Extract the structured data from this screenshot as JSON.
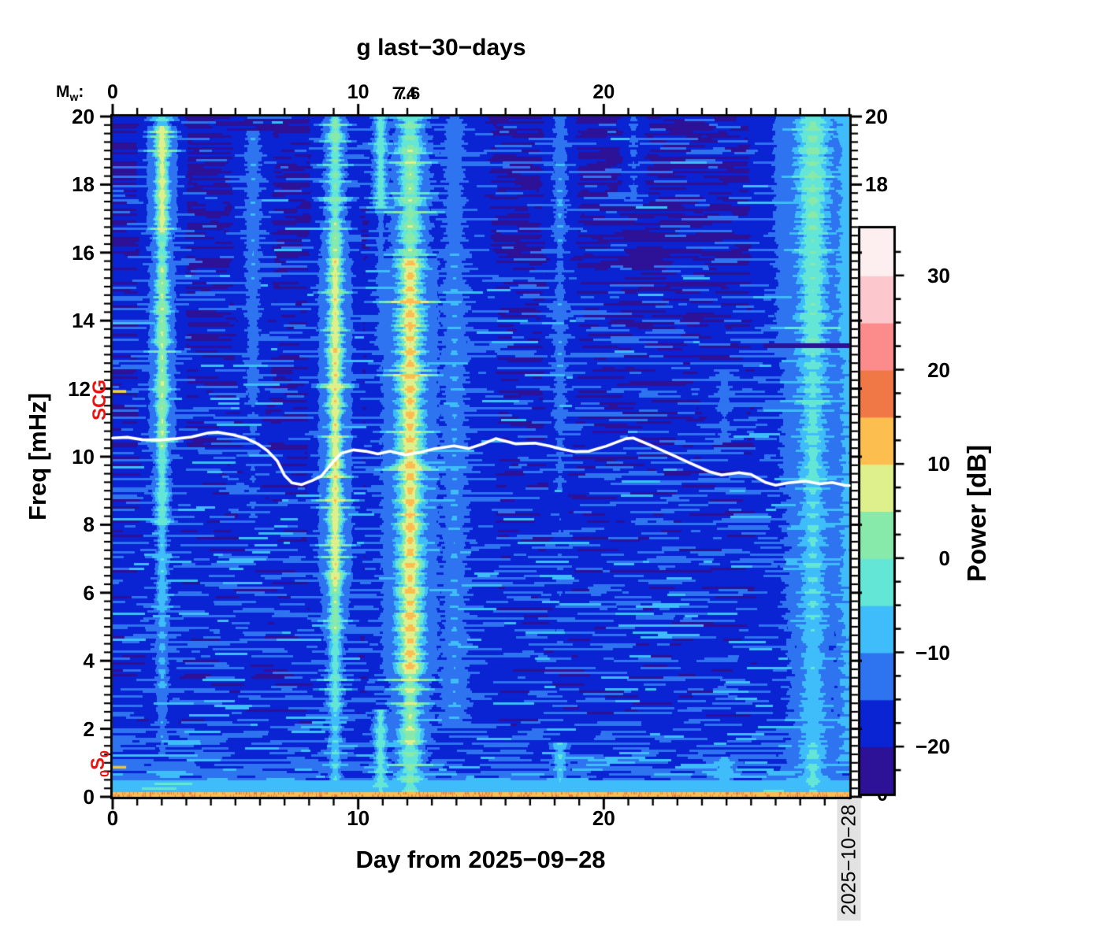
{
  "title": "g last−30−days",
  "side_date": "2025−10−28",
  "top_axis": {
    "mw": {
      "prefix": "M",
      "sub": "w",
      "suffix": ":"
    },
    "tick_values": [
      0,
      10,
      20
    ],
    "magnitude_labels": [
      {
        "text": "7.4",
        "day": 11.87
      },
      {
        "text": "7.6",
        "day": 12.03
      }
    ]
  },
  "axes": {
    "x": {
      "label": "Day from 2025−09−28",
      "min": 0,
      "max": 30,
      "major_ticks": [
        0,
        10,
        20
      ],
      "minor_step": 1
    },
    "y": {
      "label": "Freq [mHz]",
      "min": 0,
      "max": 20,
      "major_step": 2,
      "minor_step": 0.25,
      "tick_values": [
        20,
        18,
        16,
        14,
        12,
        10,
        8,
        6,
        4,
        2,
        0
      ]
    },
    "y_right_tick_labels": [
      "20",
      "18"
    ]
  },
  "colorbar": {
    "label": "Power [dB]",
    "min": -25,
    "max": 35,
    "band_step": 5,
    "major_tick_values": [
      30,
      20,
      10,
      0,
      -10,
      -20
    ],
    "major_tick_labels": [
      "30",
      "20",
      "10",
      "0",
      "−10",
      "−20"
    ],
    "minor_step": 2.5,
    "bottom_label": "0",
    "colors_bottom_to_top": [
      "#2d1196",
      "#0a23d3",
      "#2e73f0",
      "#3ebdfa",
      "#64e6d7",
      "#87e9aa",
      "#def08c",
      "#fdbe50",
      "#f07846",
      "#fc8c8c",
      "#fcc8ce",
      "#fdeef0"
    ]
  },
  "markers_text": {
    "scg": "SCG",
    "mode": {
      "pre_sub": "0",
      "letter": "S",
      "post_sub": "0"
    }
  },
  "chart_data": {
    "type": "heatmap",
    "description": "30-day normal-mode seismic spectrogram (power in dB) with earthquake bands, tracked-frequency white line, and red mode markers",
    "x": {
      "label": "Day from 2025−09−28",
      "min": 0,
      "max": 30
    },
    "y": {
      "label": "Freq [mHz]",
      "min": 0,
      "max": 20
    },
    "power": {
      "label": "Power [dB]",
      "min": -25,
      "max": 35,
      "band_step": 5
    },
    "palette": [
      "#2d1196",
      "#0a23d3",
      "#2e73f0",
      "#3ebdfa",
      "#64e6d7",
      "#87e9aa",
      "#def08c",
      "#fdbe50",
      "#f07846",
      "#fc8c8c",
      "#fcc8ce",
      "#fdeef0"
    ],
    "background_db": -21.5,
    "line_markers": [
      {
        "name": "SCG",
        "freq_mhz": 11.92,
        "day_start": 0,
        "day_end": 0.55,
        "color": "#f6d428"
      },
      {
        "name": "0S0",
        "freq_mhz": 0.87,
        "day_start": 0,
        "day_end": 0.55,
        "color": "#f0c52f"
      }
    ],
    "magnitude_annotations": [
      {
        "text": "7.4",
        "day": 11.87
      },
      {
        "text": "7.6",
        "day": 12.03
      }
    ],
    "events": [
      {
        "day": 2.0,
        "sigma": 0.22,
        "bead_amp": 3.6,
        "segments": [
          [
            19.75,
            20,
            -5
          ],
          [
            16.6,
            19.75,
            7.5
          ],
          [
            15.6,
            16.6,
            0.5
          ],
          [
            10.2,
            15.6,
            4
          ],
          [
            8.0,
            10.2,
            -1.5
          ],
          [
            5.5,
            8.0,
            -6.5
          ],
          [
            3.0,
            5.5,
            -9
          ],
          [
            1.2,
            3.0,
            -12
          ]
        ]
      },
      {
        "day": 5.7,
        "sigma": 0.3,
        "bead_amp": 2.0,
        "segments": [
          [
            15.0,
            19.6,
            -11
          ],
          [
            11.5,
            15.0,
            -12.5
          ],
          [
            8.0,
            11.5,
            -15
          ]
        ]
      },
      {
        "day": 9.05,
        "sigma": 0.24,
        "bead_amp": 4.2,
        "segments": [
          [
            19.0,
            20,
            2
          ],
          [
            16.9,
            19.0,
            0
          ],
          [
            15.8,
            16.9,
            3.5
          ],
          [
            6.2,
            15.8,
            8.3
          ],
          [
            4.8,
            6.2,
            3
          ],
          [
            2.5,
            4.8,
            -2
          ],
          [
            0.4,
            2.5,
            -6
          ]
        ]
      },
      {
        "day": 10.9,
        "sigma": 0.22,
        "bead_amp": 2.5,
        "segments": [
          [
            17.3,
            20,
            -2
          ],
          [
            13.0,
            17.3,
            -13
          ],
          [
            2.6,
            13.0,
            -16.5
          ],
          [
            0,
            2.6,
            -2.5
          ]
        ]
      },
      {
        "day": 12.1,
        "sigma": 0.38,
        "bead_amp": 5.5,
        "segments": [
          [
            19.2,
            20,
            1
          ],
          [
            15.8,
            19.2,
            2.5
          ],
          [
            3.6,
            15.8,
            10.8
          ],
          [
            1.5,
            3.6,
            4
          ],
          [
            0,
            1.5,
            0.5
          ]
        ]
      },
      {
        "day": 13.9,
        "sigma": 0.55,
        "bead_amp": 1.5,
        "halo": 0.5,
        "segments": [
          [
            16.0,
            20,
            -13
          ],
          [
            2.0,
            16.0,
            -10.5
          ]
        ]
      },
      {
        "day": 18.2,
        "sigma": 0.26,
        "bead_amp": 2.6,
        "segments": [
          [
            18.9,
            20,
            -12
          ],
          [
            16.3,
            18.9,
            -10.5
          ],
          [
            14.6,
            16.3,
            -13
          ],
          [
            12.4,
            14.6,
            -11
          ],
          [
            10.8,
            12.4,
            -12
          ],
          [
            9.0,
            10.8,
            -14
          ],
          [
            4.0,
            9.0,
            -16
          ],
          [
            0,
            1.6,
            -5.5
          ]
        ]
      },
      {
        "day": 21.2,
        "sigma": 0.3,
        "bead_amp": 1.5,
        "segments": [
          [
            17.5,
            20,
            -14.5
          ]
        ]
      },
      {
        "day": 24.9,
        "sigma": 0.45,
        "bead_amp": 1.5,
        "segments": [
          [
            10.5,
            12.5,
            -14
          ],
          [
            0,
            1.2,
            -7.5
          ]
        ]
      },
      {
        "day": 28.5,
        "sigma": 0.55,
        "bead_amp": 2.8,
        "halo": 0.6,
        "segments": [
          [
            16.5,
            20,
            0.5
          ],
          [
            13.0,
            16.5,
            -1
          ],
          [
            9.0,
            13.0,
            -3.5
          ],
          [
            5.0,
            9.0,
            -5
          ],
          [
            1.5,
            5.0,
            -6.5
          ],
          [
            0,
            1.5,
            -4
          ]
        ]
      },
      {
        "day": 29.9,
        "sigma": 0.5,
        "bead_amp": 2.0,
        "halo": 0.5,
        "segments": [
          [
            13.0,
            20,
            -7
          ],
          [
            1.0,
            13.0,
            -9
          ]
        ]
      }
    ],
    "white_line": {
      "name": "tracked mode frequency",
      "points": [
        [
          0,
          10.55
        ],
        [
          0.6,
          10.57
        ],
        [
          1.2,
          10.5
        ],
        [
          1.9,
          10.49
        ],
        [
          2.6,
          10.53
        ],
        [
          3.2,
          10.58
        ],
        [
          3.9,
          10.7
        ],
        [
          4.3,
          10.72
        ],
        [
          4.9,
          10.64
        ],
        [
          5.4,
          10.55
        ],
        [
          5.9,
          10.38
        ],
        [
          6.3,
          10.18
        ],
        [
          6.7,
          9.88
        ],
        [
          7.0,
          9.45
        ],
        [
          7.3,
          9.23
        ],
        [
          7.7,
          9.18
        ],
        [
          8.1,
          9.29
        ],
        [
          8.5,
          9.43
        ],
        [
          8.9,
          9.78
        ],
        [
          9.3,
          10.1
        ],
        [
          9.8,
          10.2
        ],
        [
          10.3,
          10.16
        ],
        [
          10.8,
          10.08
        ],
        [
          11.3,
          10.16
        ],
        [
          11.9,
          10.05
        ],
        [
          12.5,
          10.13
        ],
        [
          13.1,
          10.23
        ],
        [
          13.9,
          10.32
        ],
        [
          14.5,
          10.24
        ],
        [
          15.1,
          10.38
        ],
        [
          15.6,
          10.53
        ],
        [
          16.4,
          10.38
        ],
        [
          17.2,
          10.4
        ],
        [
          17.8,
          10.31
        ],
        [
          18.3,
          10.22
        ],
        [
          18.8,
          10.15
        ],
        [
          19.4,
          10.16
        ],
        [
          20.1,
          10.31
        ],
        [
          20.9,
          10.53
        ],
        [
          21.2,
          10.55
        ],
        [
          21.9,
          10.34
        ],
        [
          22.8,
          10.05
        ],
        [
          23.5,
          9.82
        ],
        [
          24.3,
          9.56
        ],
        [
          24.8,
          9.46
        ],
        [
          25.5,
          9.53
        ],
        [
          26.0,
          9.48
        ],
        [
          26.6,
          9.24
        ],
        [
          27.0,
          9.16
        ],
        [
          27.5,
          9.23
        ],
        [
          28.2,
          9.28
        ],
        [
          28.8,
          9.2
        ],
        [
          29.3,
          9.24
        ],
        [
          29.8,
          9.16
        ],
        [
          30,
          9.15
        ]
      ]
    }
  }
}
